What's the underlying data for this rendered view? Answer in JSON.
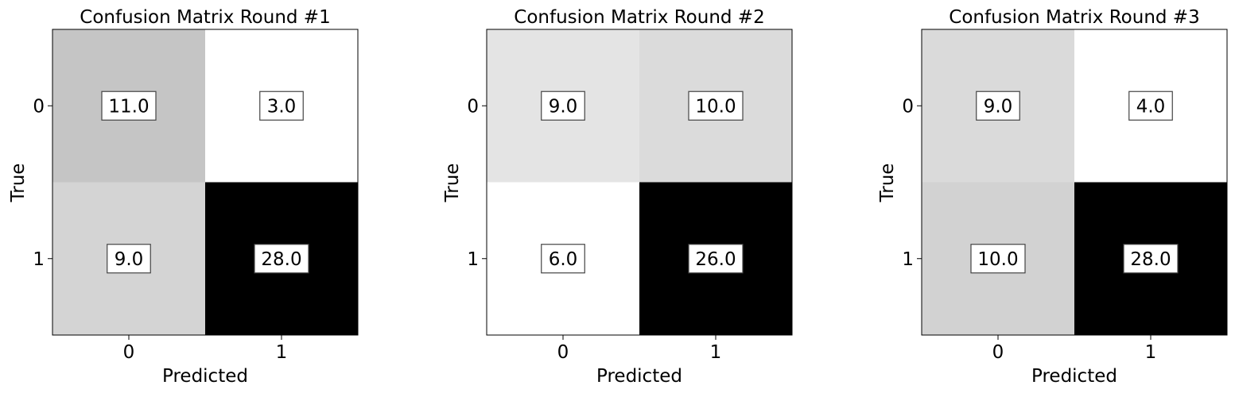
{
  "chart_data": [
    {
      "type": "heatmap",
      "title": "Confusion Matrix Round #1",
      "xlabel": "Predicted",
      "ylabel": "True",
      "x_categories": [
        "0",
        "1"
      ],
      "y_categories": [
        "0",
        "1"
      ],
      "values": [
        [
          11.0,
          3.0
        ],
        [
          9.0,
          28.0
        ]
      ],
      "value_labels": [
        [
          "11.0",
          "3.0"
        ],
        [
          "9.0",
          "28.0"
        ]
      ],
      "colormap": "Greys",
      "grid": false
    },
    {
      "type": "heatmap",
      "title": "Confusion Matrix Round #2",
      "xlabel": "Predicted",
      "ylabel": "True",
      "x_categories": [
        "0",
        "1"
      ],
      "y_categories": [
        "0",
        "1"
      ],
      "values": [
        [
          9.0,
          10.0
        ],
        [
          6.0,
          26.0
        ]
      ],
      "value_labels": [
        [
          "9.0",
          "10.0"
        ],
        [
          "6.0",
          "26.0"
        ]
      ],
      "colormap": "Greys",
      "grid": false
    },
    {
      "type": "heatmap",
      "title": "Confusion Matrix Round #3",
      "xlabel": "Predicted",
      "ylabel": "True",
      "x_categories": [
        "0",
        "1"
      ],
      "y_categories": [
        "0",
        "1"
      ],
      "values": [
        [
          9.0,
          4.0
        ],
        [
          10.0,
          28.0
        ]
      ],
      "value_labels": [
        [
          "9.0",
          "4.0"
        ],
        [
          "10.0",
          "28.0"
        ]
      ],
      "colormap": "Greys",
      "grid": false
    }
  ]
}
